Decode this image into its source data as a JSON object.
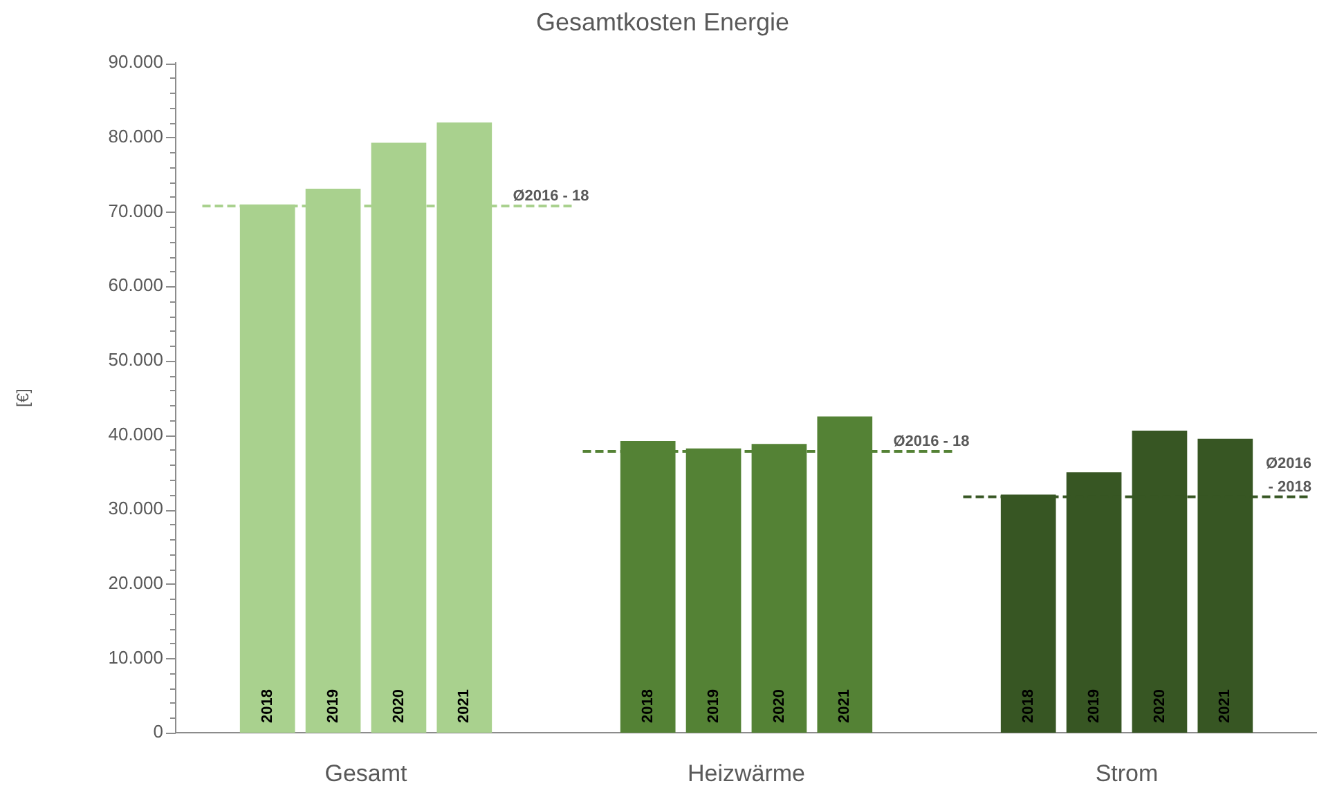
{
  "chart_data": {
    "type": "bar",
    "title": "Gesamtkosten Energie",
    "ylabel": "[€]",
    "categories": [
      "Gesamt",
      "Heizwärme",
      "Strom"
    ],
    "series": [
      {
        "name": "2018",
        "colors": [
          "#a9d18e",
          "#548235",
          "#375623"
        ],
        "values": [
          71000,
          39200,
          32000
        ]
      },
      {
        "name": "2019",
        "colors": [
          "#a9d18e",
          "#548235",
          "#375623"
        ],
        "values": [
          73100,
          38200,
          35000
        ]
      },
      {
        "name": "2020",
        "colors": [
          "#a9d18e",
          "#548235",
          "#375623"
        ],
        "values": [
          79300,
          38800,
          40600
        ]
      },
      {
        "name": "2021",
        "colors": [
          "#a9d18e",
          "#548235",
          "#375623"
        ],
        "values": [
          82000,
          42500,
          39500
        ]
      }
    ],
    "ylim": [
      0,
      90000
    ],
    "yticks": [
      0,
      {
        "value": 2000,
        "label": null
      },
      {
        "value": 4000,
        "label": null
      },
      {
        "value": 6000,
        "label": null
      },
      {
        "value": 8000,
        "label": null
      },
      {
        "value": 10000,
        "label": "10.000"
      },
      {
        "value": 12000,
        "label": null
      },
      {
        "value": 14000,
        "label": null
      },
      {
        "value": 16000,
        "label": null
      },
      {
        "value": 18000,
        "label": null
      },
      {
        "value": 20000,
        "label": "20.000"
      },
      {
        "value": 22000,
        "label": null
      },
      {
        "value": 24000,
        "label": null
      },
      {
        "value": 26000,
        "label": null
      },
      {
        "value": 28000,
        "label": null
      },
      {
        "value": 30000,
        "label": "30.000"
      },
      {
        "value": 32000,
        "label": null
      },
      {
        "value": 34000,
        "label": null
      },
      {
        "value": 36000,
        "label": null
      },
      {
        "value": 38000,
        "label": null
      },
      {
        "value": 40000,
        "label": "40.000"
      },
      {
        "value": 42000,
        "label": null
      },
      {
        "value": 44000,
        "label": null
      },
      {
        "value": 46000,
        "label": null
      },
      {
        "value": 48000,
        "label": null
      },
      {
        "value": 50000,
        "label": "50.000"
      },
      {
        "value": 52000,
        "label": null
      },
      {
        "value": 54000,
        "label": null
      },
      {
        "value": 56000,
        "label": null
      },
      {
        "value": 58000,
        "label": null
      },
      {
        "value": 60000,
        "label": "60.000"
      },
      {
        "value": 62000,
        "label": null
      },
      {
        "value": 64000,
        "label": null
      },
      {
        "value": 66000,
        "label": null
      },
      {
        "value": 68000,
        "label": null
      },
      {
        "value": 70000,
        "label": "70.000"
      },
      {
        "value": 72000,
        "label": null
      },
      {
        "value": 74000,
        "label": null
      },
      {
        "value": 76000,
        "label": null
      },
      {
        "value": 78000,
        "label": null
      },
      {
        "value": 80000,
        "label": "80.000"
      },
      {
        "value": 82000,
        "label": null
      },
      {
        "value": 84000,
        "label": null
      },
      {
        "value": 86000,
        "label": null
      },
      {
        "value": 88000,
        "label": null
      },
      {
        "value": 90000,
        "label": "90.000"
      }
    ],
    "ref_lines": [
      {
        "axis": "y",
        "value": 70800,
        "label": "Ø2016 - 18",
        "color": "#a9d18e",
        "line_style": "dashed"
      },
      {
        "axis": "y",
        "value": 37800,
        "label": "Ø2016 - 18",
        "color": "#548235",
        "line_style": "dashed"
      },
      {
        "axis": "y",
        "value": 31700,
        "label": "Ø2016 - 2018",
        "color": "#375623",
        "line_style": "dashed"
      }
    ]
  }
}
